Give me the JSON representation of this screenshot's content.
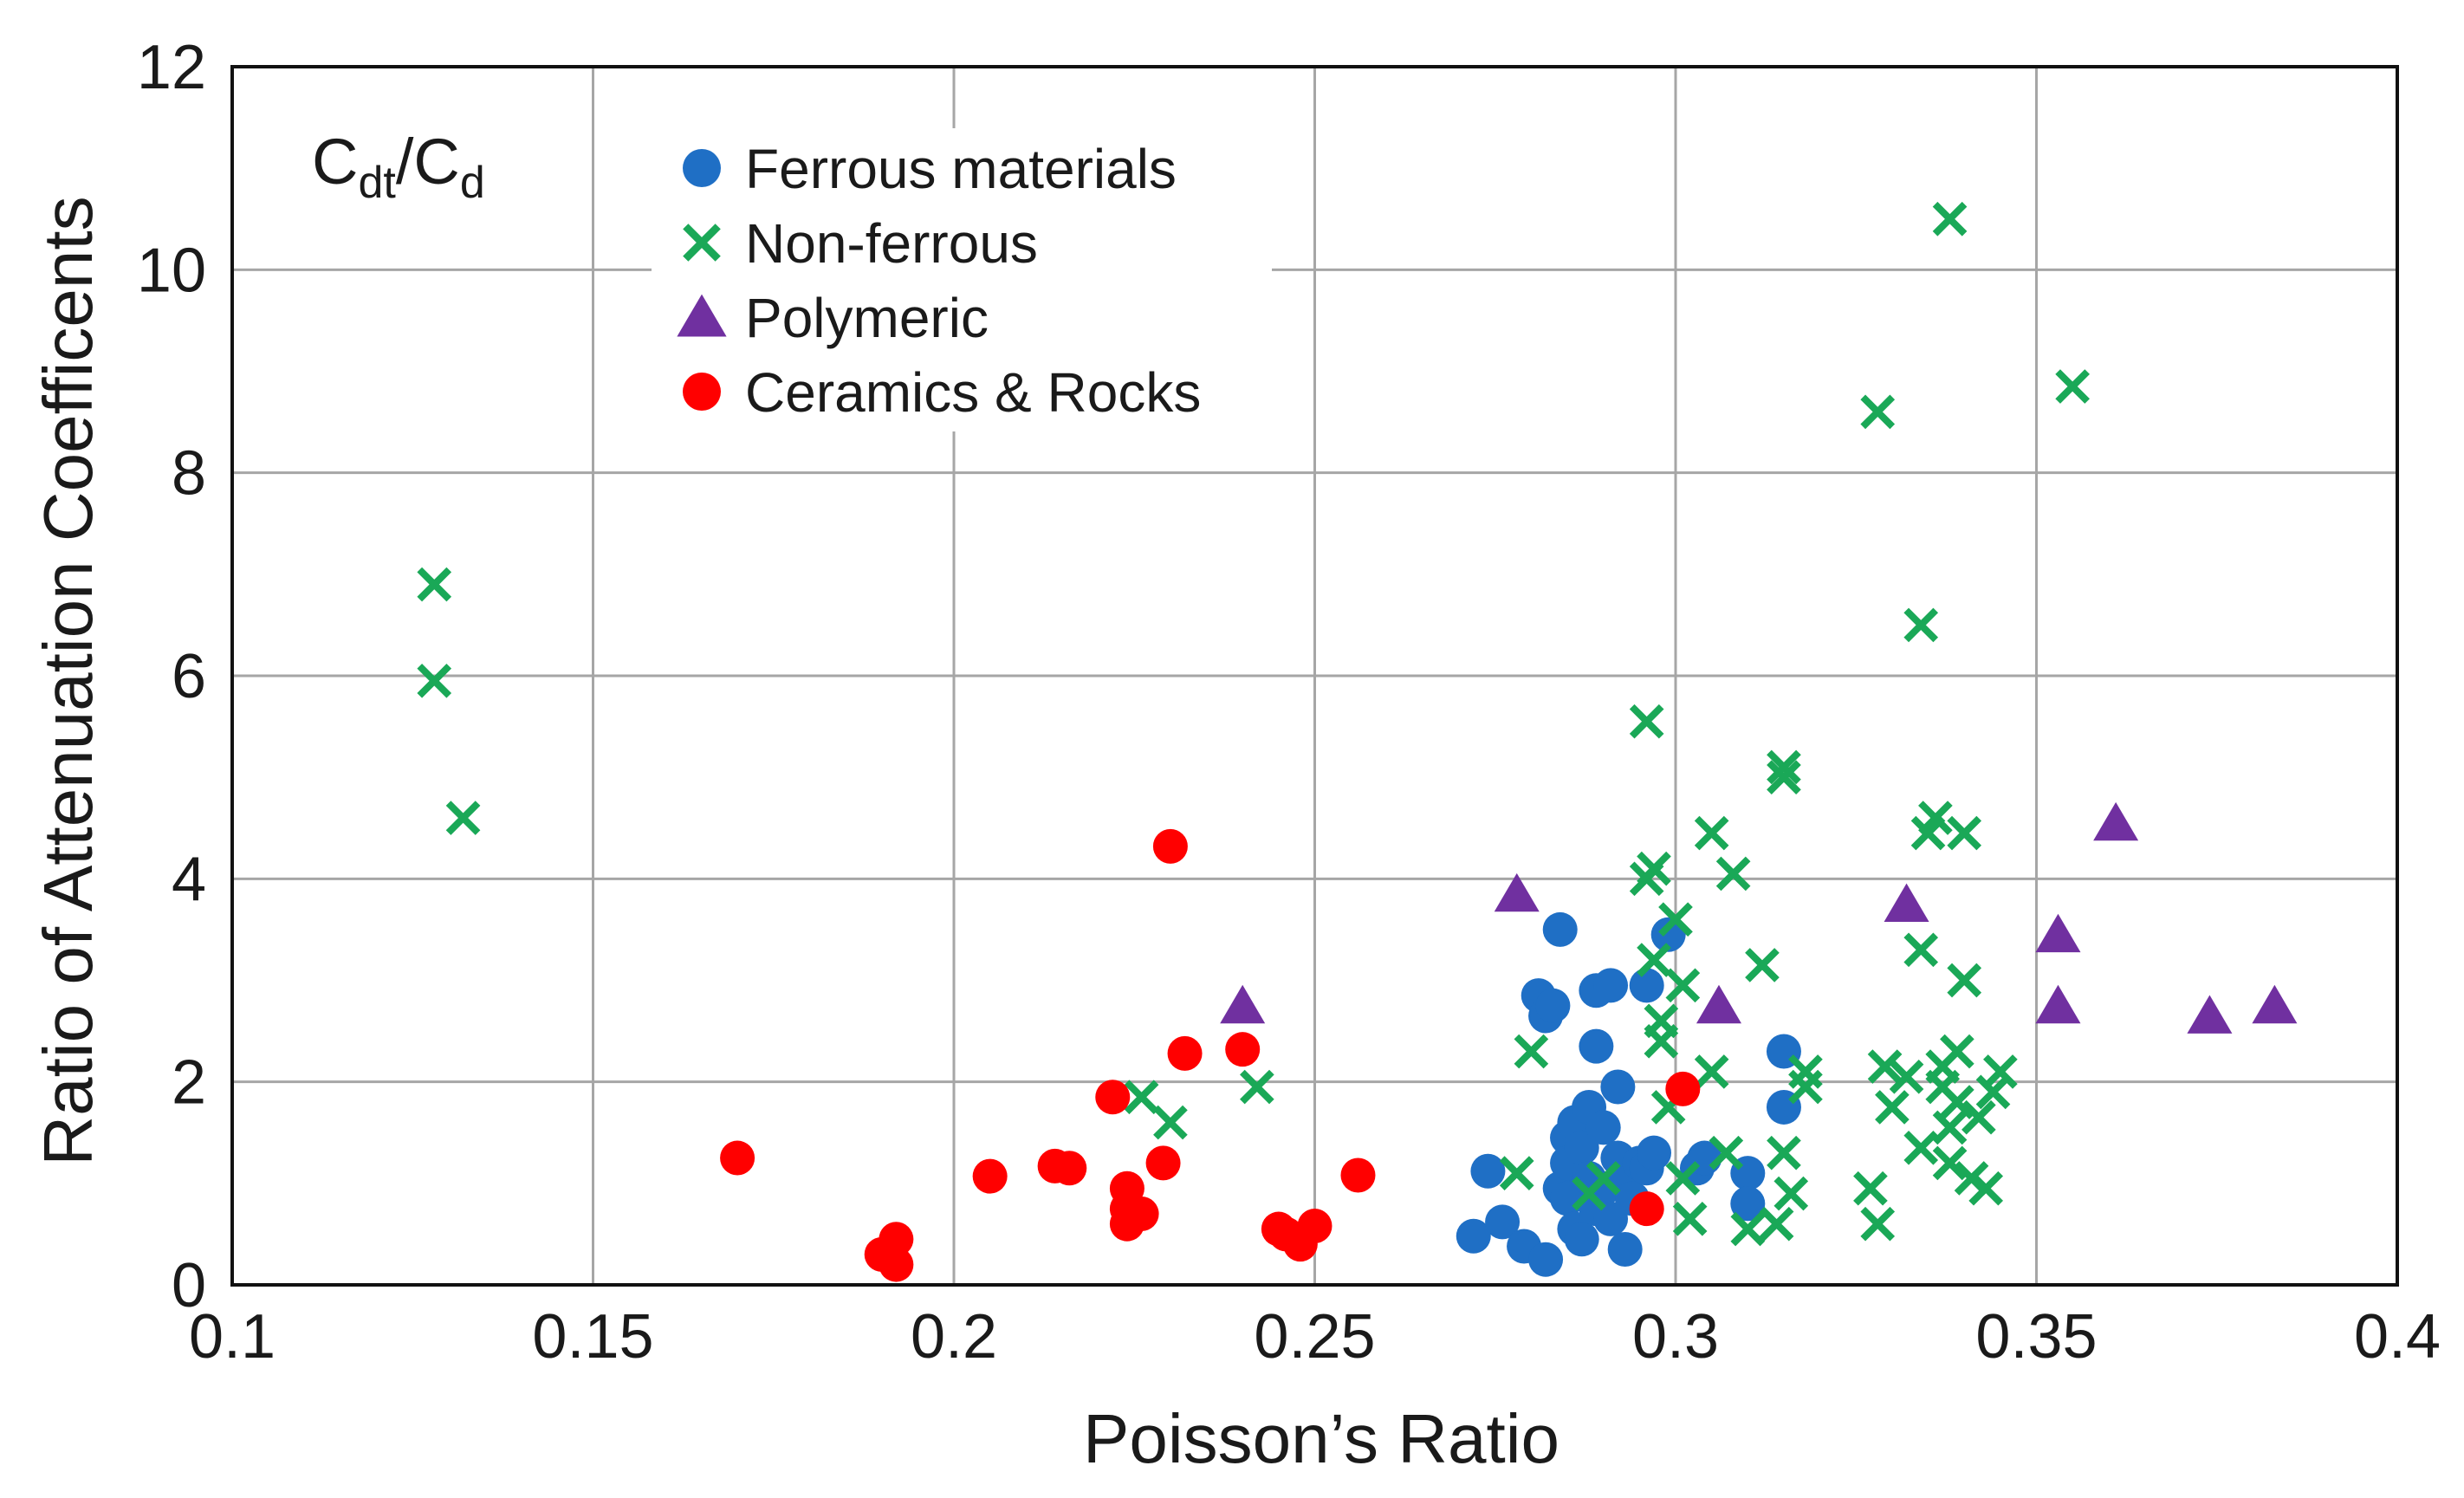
{
  "chart_data": {
    "type": "scatter",
    "title": "",
    "annotation": {
      "main": "C",
      "sub1": "dt",
      "slash": "/C",
      "sub2": "d"
    },
    "xlabel": "Poisson’s Ratio",
    "ylabel": "Ratio of Attenuation Coefficents",
    "xlim": [
      0.1,
      0.4
    ],
    "ylim": [
      0,
      12
    ],
    "xticks": [
      0.1,
      0.15,
      0.2,
      0.25,
      0.3,
      0.35,
      0.4
    ],
    "xtick_labels": [
      "0.1",
      "0.15",
      "0.2",
      "0.25",
      "0.3",
      "0.35",
      "0.4"
    ],
    "yticks": [
      0,
      2,
      4,
      6,
      8,
      10,
      12
    ],
    "ytick_labels": [
      "0",
      "2",
      "4",
      "6",
      "8",
      "10",
      "12"
    ],
    "grid": true,
    "legend_position": "top-left",
    "series": [
      {
        "name": "Ferrous materials",
        "marker": "circle",
        "color": "#1f6fc5",
        "points": [
          [
            0.272,
            0.48
          ],
          [
            0.274,
            1.12
          ],
          [
            0.276,
            0.62
          ],
          [
            0.279,
            0.38
          ],
          [
            0.281,
            2.85
          ],
          [
            0.282,
            2.65
          ],
          [
            0.282,
            0.25
          ],
          [
            0.283,
            2.75
          ],
          [
            0.284,
            3.5
          ],
          [
            0.284,
            0.95
          ],
          [
            0.285,
            1.45
          ],
          [
            0.285,
            1.2
          ],
          [
            0.285,
            0.85
          ],
          [
            0.286,
            1.6
          ],
          [
            0.286,
            0.55
          ],
          [
            0.287,
            1.35
          ],
          [
            0.287,
            0.45
          ],
          [
            0.288,
            1.75
          ],
          [
            0.288,
            1.05
          ],
          [
            0.289,
            2.35
          ],
          [
            0.289,
            2.9
          ],
          [
            0.289,
            0.75
          ],
          [
            0.29,
            1.55
          ],
          [
            0.29,
            0.95
          ],
          [
            0.291,
            2.95
          ],
          [
            0.291,
            0.65
          ],
          [
            0.292,
            1.95
          ],
          [
            0.292,
            1.25
          ],
          [
            0.293,
            0.35
          ],
          [
            0.293,
            1.0
          ],
          [
            0.294,
            0.85
          ],
          [
            0.295,
            1.2
          ],
          [
            0.296,
            2.95
          ],
          [
            0.296,
            1.15
          ],
          [
            0.297,
            1.3
          ],
          [
            0.299,
            3.45
          ],
          [
            0.303,
            1.15
          ],
          [
            0.304,
            1.25
          ],
          [
            0.31,
            1.1
          ],
          [
            0.31,
            0.8
          ],
          [
            0.315,
            2.3
          ],
          [
            0.315,
            1.75
          ]
        ]
      },
      {
        "name": "Non-ferrous",
        "marker": "x",
        "color": "#1aa857",
        "points": [
          [
            0.128,
            6.9
          ],
          [
            0.128,
            5.95
          ],
          [
            0.132,
            4.6
          ],
          [
            0.226,
            1.85
          ],
          [
            0.23,
            1.6
          ],
          [
            0.242,
            1.95
          ],
          [
            0.278,
            1.1
          ],
          [
            0.28,
            2.3
          ],
          [
            0.288,
            0.9
          ],
          [
            0.29,
            1.05
          ],
          [
            0.296,
            5.55
          ],
          [
            0.296,
            4.0
          ],
          [
            0.297,
            4.1
          ],
          [
            0.297,
            3.2
          ],
          [
            0.298,
            2.6
          ],
          [
            0.298,
            2.4
          ],
          [
            0.299,
            1.75
          ],
          [
            0.3,
            3.6
          ],
          [
            0.301,
            2.95
          ],
          [
            0.301,
            1.05
          ],
          [
            0.302,
            0.65
          ],
          [
            0.305,
            4.45
          ],
          [
            0.305,
            2.1
          ],
          [
            0.307,
            1.3
          ],
          [
            0.308,
            4.05
          ],
          [
            0.31,
            0.55
          ],
          [
            0.312,
            3.15
          ],
          [
            0.314,
            0.6
          ],
          [
            0.315,
            5.1
          ],
          [
            0.315,
            5.0
          ],
          [
            0.315,
            1.3
          ],
          [
            0.316,
            0.9
          ],
          [
            0.318,
            2.1
          ],
          [
            0.318,
            1.95
          ],
          [
            0.327,
            0.95
          ],
          [
            0.328,
            0.6
          ],
          [
            0.328,
            8.6
          ],
          [
            0.329,
            2.15
          ],
          [
            0.33,
            1.75
          ],
          [
            0.332,
            2.05
          ],
          [
            0.334,
            1.35
          ],
          [
            0.334,
            3.3
          ],
          [
            0.334,
            6.5
          ],
          [
            0.335,
            4.45
          ],
          [
            0.336,
            4.6
          ],
          [
            0.337,
            1.95
          ],
          [
            0.337,
            2.15
          ],
          [
            0.338,
            1.55
          ],
          [
            0.338,
            1.2
          ],
          [
            0.338,
            10.5
          ],
          [
            0.339,
            2.3
          ],
          [
            0.339,
            1.8
          ],
          [
            0.34,
            3.0
          ],
          [
            0.34,
            4.45
          ],
          [
            0.341,
            1.05
          ],
          [
            0.342,
            1.65
          ],
          [
            0.343,
            0.95
          ],
          [
            0.344,
            1.9
          ],
          [
            0.345,
            2.1
          ],
          [
            0.355,
            8.85
          ]
        ]
      },
      {
        "name": "Polymeric",
        "marker": "triangle",
        "color": "#7030a0",
        "points": [
          [
            0.24,
            2.75
          ],
          [
            0.278,
            3.85
          ],
          [
            0.306,
            2.75
          ],
          [
            0.332,
            3.75
          ],
          [
            0.353,
            2.75
          ],
          [
            0.353,
            3.45
          ],
          [
            0.361,
            4.55
          ],
          [
            0.374,
            2.65
          ],
          [
            0.383,
            2.75
          ]
        ]
      },
      {
        "name": "Ceramics & Rocks",
        "marker": "circle",
        "color": "#ff0000",
        "points": [
          [
            0.17,
            1.25
          ],
          [
            0.19,
            0.3
          ],
          [
            0.192,
            0.45
          ],
          [
            0.192,
            0.2
          ],
          [
            0.205,
            1.07
          ],
          [
            0.214,
            1.17
          ],
          [
            0.216,
            1.15
          ],
          [
            0.222,
            1.85
          ],
          [
            0.224,
            0.95
          ],
          [
            0.224,
            0.75
          ],
          [
            0.224,
            0.6
          ],
          [
            0.226,
            0.7
          ],
          [
            0.229,
            1.2
          ],
          [
            0.23,
            4.32
          ],
          [
            0.232,
            2.28
          ],
          [
            0.24,
            2.32
          ],
          [
            0.245,
            0.55
          ],
          [
            0.246,
            0.5
          ],
          [
            0.248,
            0.4
          ],
          [
            0.25,
            0.58
          ],
          [
            0.256,
            1.08
          ],
          [
            0.296,
            0.75
          ],
          [
            0.301,
            1.93
          ]
        ]
      }
    ]
  }
}
